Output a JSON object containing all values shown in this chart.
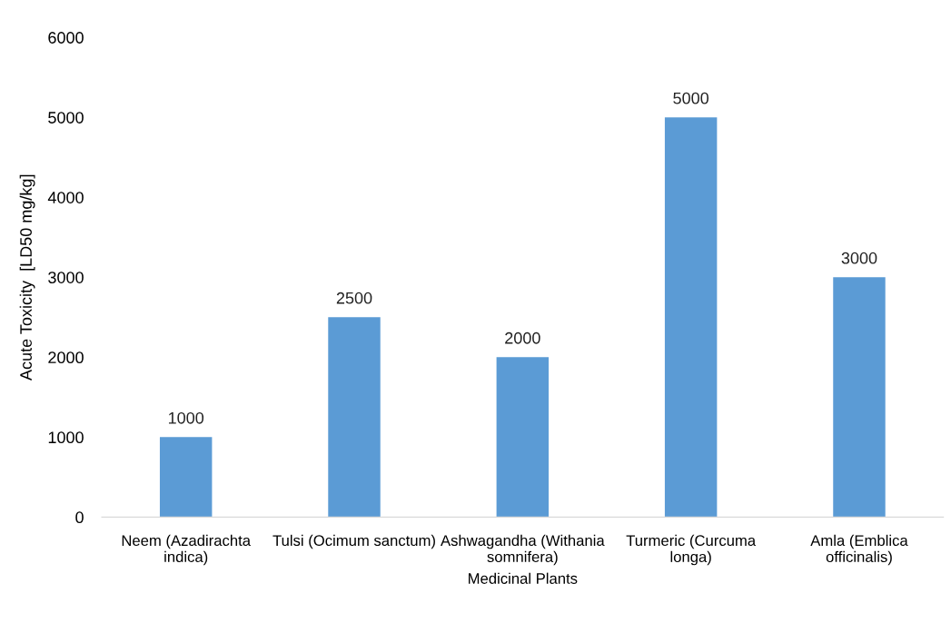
{
  "chart_data": {
    "type": "bar",
    "xlabel": "Medicinal Plants",
    "ylabel": "Acute Toxicity  [LD50 mg/kg]",
    "categories": [
      "Neem (Azadirachta\nindica)",
      "Tulsi (Ocimum sanctum)",
      "Ashwagandha (Withania\nsomnifera)",
      "Turmeric (Curcuma\nlonga)",
      "Amla (Emblica\nofficinalis)"
    ],
    "values": [
      1000,
      2500,
      2000,
      5000,
      3000
    ],
    "color": "#5b9bd5",
    "ylim": [
      0,
      6000
    ],
    "yticks": [
      0,
      1000,
      2000,
      3000,
      4000,
      5000,
      6000
    ],
    "data_labels": true
  }
}
